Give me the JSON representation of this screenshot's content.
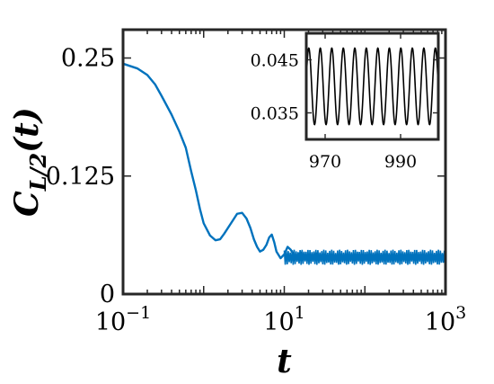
{
  "chart_data": [
    {
      "type": "line",
      "xlabel": "t",
      "ylabel": "C_{L/2}(t)",
      "ylabel_parts": {
        "main": "C",
        "sub": "L/2",
        "arg": "(t)"
      },
      "xscale": "log",
      "xlim": [
        0.1,
        1000
      ],
      "ylim": [
        0,
        0.28
      ],
      "xticks": [
        0.1,
        10,
        1000
      ],
      "xtick_labels": [
        {
          "base": "10",
          "exp": "−1"
        },
        {
          "base": "10",
          "exp": "1"
        },
        {
          "base": "10",
          "exp": "3"
        }
      ],
      "yticks": [
        0,
        0.125,
        0.25
      ],
      "ytick_labels": [
        "0",
        "0.125",
        "0.25"
      ],
      "grid": false,
      "series": [
        {
          "color": "#0072BD",
          "x": [
            0.1,
            0.15,
            0.2,
            0.25,
            0.3,
            0.4,
            0.5,
            0.6,
            0.7,
            0.8,
            0.9,
            1.0,
            1.2,
            1.4,
            1.6,
            1.8,
            2.0,
            2.3,
            2.6,
            3.0,
            3.4,
            3.8,
            4.2,
            4.6,
            5.0,
            5.5,
            6.0,
            6.5,
            7.0,
            7.5,
            8.0,
            9.0,
            10.0,
            11.0,
            12.0,
            14.0,
            16.0,
            20.0,
            25.0,
            30.0,
            40.0,
            60.0,
            100.0,
            200.0,
            400.0,
            700.0,
            1000.0
          ],
          "y": [
            0.244,
            0.239,
            0.232,
            0.222,
            0.21,
            0.19,
            0.172,
            0.155,
            0.13,
            0.11,
            0.09,
            0.075,
            0.062,
            0.057,
            0.058,
            0.064,
            0.07,
            0.078,
            0.085,
            0.086,
            0.08,
            0.07,
            0.058,
            0.05,
            0.045,
            0.047,
            0.052,
            0.06,
            0.063,
            0.055,
            0.045,
            0.038,
            0.042,
            0.05,
            0.047,
            0.038,
            0.044,
            0.036,
            0.043,
            0.038,
            0.04,
            0.04,
            0.039,
            0.039,
            0.039,
            0.039,
            0.039
          ]
        }
      ],
      "band": {
        "x_start": 10,
        "x_end": 1000,
        "y_low": 0.031,
        "y_high": 0.047,
        "color": "#0072BD"
      }
    },
    {
      "type": "line",
      "role": "inset",
      "xlim": [
        965,
        1000
      ],
      "ylim": [
        0.03,
        0.05
      ],
      "xticks": [
        970,
        990
      ],
      "xtick_labels": [
        "970",
        "990"
      ],
      "yticks": [
        0.035,
        0.045
      ],
      "ytick_labels": [
        "0.035",
        "0.045"
      ],
      "series": [
        {
          "color": "#000000",
          "oscillation": {
            "x_start": 965,
            "x_end": 1000,
            "center": 0.04,
            "amplitude": 0.0072,
            "period": 3.05,
            "phase_at_start": 0.2
          }
        }
      ]
    }
  ]
}
